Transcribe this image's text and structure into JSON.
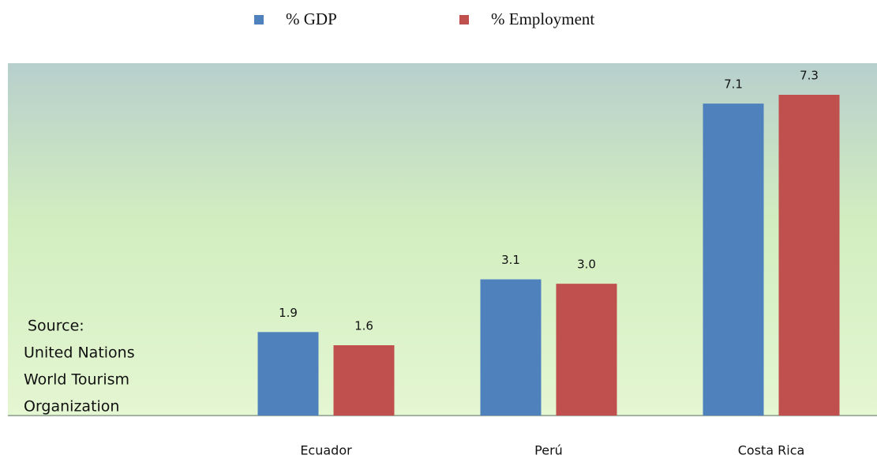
{
  "chart_data": {
    "type": "bar",
    "categories": [
      "Ecuador",
      "Perú",
      "Costa Rica"
    ],
    "series": [
      {
        "name": "% GDP",
        "color": "#4f81bd",
        "values": [
          1.9,
          3.1,
          7.1
        ],
        "value_labels": [
          "1.9",
          "3.1",
          "7.1"
        ]
      },
      {
        "name": "% Employment",
        "color": "#c0504d",
        "values": [
          1.6,
          3.0,
          7.3
        ],
        "value_labels": [
          "1.6",
          "3.0",
          "7.3"
        ]
      }
    ],
    "annotation": [
      "Source:",
      "United Nations",
      "World Tourism",
      "Organization"
    ],
    "legend": "top"
  }
}
